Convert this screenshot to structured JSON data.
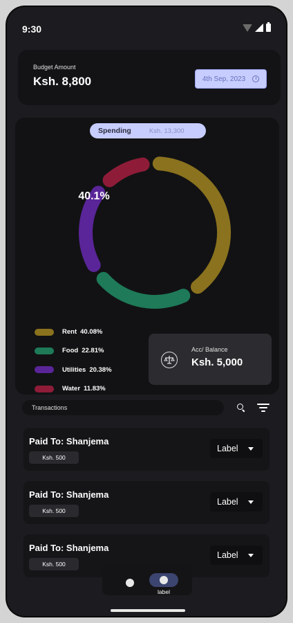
{
  "status_bar": {
    "time": "9:30"
  },
  "budget": {
    "label": "Budget Amount",
    "amount": "Ksh. 8,800",
    "date": "4th Sep, 2023"
  },
  "spending": {
    "label": "Spending",
    "amount": "Ksh. 13,300",
    "center_text": "40.1%"
  },
  "chart_data": {
    "type": "pie",
    "categories": [
      "Rent",
      "Food",
      "Utilities",
      "Water"
    ],
    "values": [
      40.08,
      22.81,
      20.38,
      11.83
    ],
    "colors": [
      "#8a721e",
      "#1e7a58",
      "#5a2598",
      "#8e1c38"
    ]
  },
  "legend": [
    {
      "name": "Rent",
      "pct": "40.08%",
      "color": "#8a721e"
    },
    {
      "name": "Food",
      "pct": "22.81%",
      "color": "#1e7a58"
    },
    {
      "name": "Utilities",
      "pct": "20.38%",
      "color": "#5a2598"
    },
    {
      "name": "Water",
      "pct": "11.83%",
      "color": "#8e1c38"
    }
  ],
  "balance": {
    "label": "Acc/ Balance",
    "amount": "Ksh. 5,000"
  },
  "transactions": {
    "search_label": "Transactions",
    "items": [
      {
        "title": "Paid To: Shanjema",
        "amount": "Ksh. 500",
        "label": "Label"
      },
      {
        "title": "Paid To: Shanjema",
        "amount": "Ksh. 500",
        "label": "Label"
      },
      {
        "title": "Paid To: Shanjema",
        "amount": "Ksh. 500",
        "label": "Label"
      }
    ]
  },
  "nav": {
    "active_label": "label"
  }
}
